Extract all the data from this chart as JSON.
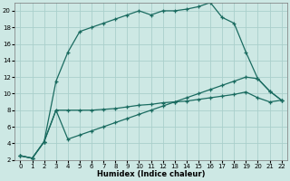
{
  "xlabel": "Humidex (Indice chaleur)",
  "bg_color": "#cde8e4",
  "grid_color": "#aacfcb",
  "line_color": "#1a6b60",
  "xlim": [
    -0.5,
    22.5
  ],
  "ylim": [
    2,
    21
  ],
  "yticks": [
    2,
    4,
    6,
    8,
    10,
    12,
    14,
    16,
    18,
    20
  ],
  "xticks": [
    0,
    1,
    2,
    3,
    4,
    5,
    6,
    7,
    8,
    9,
    10,
    11,
    12,
    13,
    14,
    15,
    16,
    17,
    18,
    19,
    20,
    21,
    22
  ],
  "line1_x": [
    0,
    1,
    2,
    3,
    4,
    5,
    6,
    7,
    8,
    9,
    10,
    11,
    12,
    13,
    14,
    15,
    16,
    17,
    18,
    19,
    20,
    21,
    22
  ],
  "line1_y": [
    2.5,
    2.2,
    4.2,
    11.5,
    15.0,
    17.5,
    18.0,
    18.5,
    19.0,
    19.5,
    20.0,
    19.5,
    20.0,
    20.0,
    20.2,
    20.5,
    21.0,
    19.2,
    18.5,
    15.0,
    11.8,
    10.3,
    9.2
  ],
  "line2_x": [
    0,
    1,
    2,
    3,
    4,
    5,
    6,
    7,
    8,
    9,
    10,
    11,
    12,
    13,
    14,
    15,
    16,
    17,
    18,
    19,
    20,
    21,
    22
  ],
  "line2_y": [
    2.5,
    2.2,
    4.2,
    8.0,
    8.0,
    8.0,
    8.0,
    8.1,
    8.2,
    8.4,
    8.6,
    8.7,
    8.9,
    9.0,
    9.1,
    9.3,
    9.5,
    9.7,
    9.9,
    10.2,
    9.5,
    9.0,
    9.2
  ],
  "line3_x": [
    0,
    1,
    2,
    3,
    4,
    5,
    6,
    7,
    8,
    9,
    10,
    11,
    12,
    13,
    14,
    15,
    16,
    17,
    18,
    19,
    20,
    21,
    22
  ],
  "line3_y": [
    2.5,
    2.2,
    4.2,
    8.0,
    4.5,
    5.0,
    5.5,
    6.0,
    6.5,
    7.0,
    7.5,
    8.0,
    8.5,
    9.0,
    9.5,
    10.0,
    10.5,
    11.0,
    11.5,
    12.0,
    11.8,
    10.3,
    9.2
  ]
}
